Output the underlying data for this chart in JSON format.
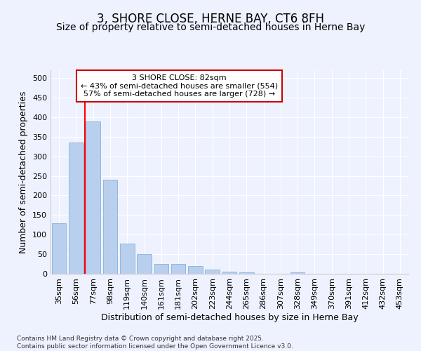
{
  "title": "3, SHORE CLOSE, HERNE BAY, CT6 8FH",
  "subtitle": "Size of property relative to semi-detached houses in Herne Bay",
  "xlabel": "Distribution of semi-detached houses by size in Herne Bay",
  "ylabel": "Number of semi-detached properties",
  "categories": [
    "35sqm",
    "56sqm",
    "77sqm",
    "98sqm",
    "119sqm",
    "140sqm",
    "161sqm",
    "181sqm",
    "202sqm",
    "223sqm",
    "244sqm",
    "265sqm",
    "286sqm",
    "307sqm",
    "328sqm",
    "349sqm",
    "370sqm",
    "391sqm",
    "412sqm",
    "432sqm",
    "453sqm"
  ],
  "values": [
    130,
    335,
    390,
    240,
    78,
    50,
    25,
    25,
    20,
    10,
    5,
    4,
    0,
    0,
    3,
    0,
    0,
    0,
    0,
    0,
    0
  ],
  "bar_color": "#b8d0ee",
  "bar_edge_color": "#8ab0d8",
  "redline_x": 1.5,
  "redline_label": "3 SHORE CLOSE: 82sqm",
  "annotation_line1": "← 43% of semi-detached houses are smaller (554)",
  "annotation_line2": "57% of semi-detached houses are larger (728) →",
  "ylim": [
    0,
    520
  ],
  "yticks": [
    0,
    50,
    100,
    150,
    200,
    250,
    300,
    350,
    400,
    450,
    500
  ],
  "title_fontsize": 12,
  "subtitle_fontsize": 10,
  "axis_label_fontsize": 9,
  "tick_fontsize": 8,
  "footnote1": "Contains HM Land Registry data © Crown copyright and database right 2025.",
  "footnote2": "Contains public sector information licensed under the Open Government Licence v3.0.",
  "background_color": "#eef2ff",
  "grid_color": "#ffffff",
  "annotation_box_facecolor": "#ffffff",
  "annotation_box_edgecolor": "#cc0000"
}
